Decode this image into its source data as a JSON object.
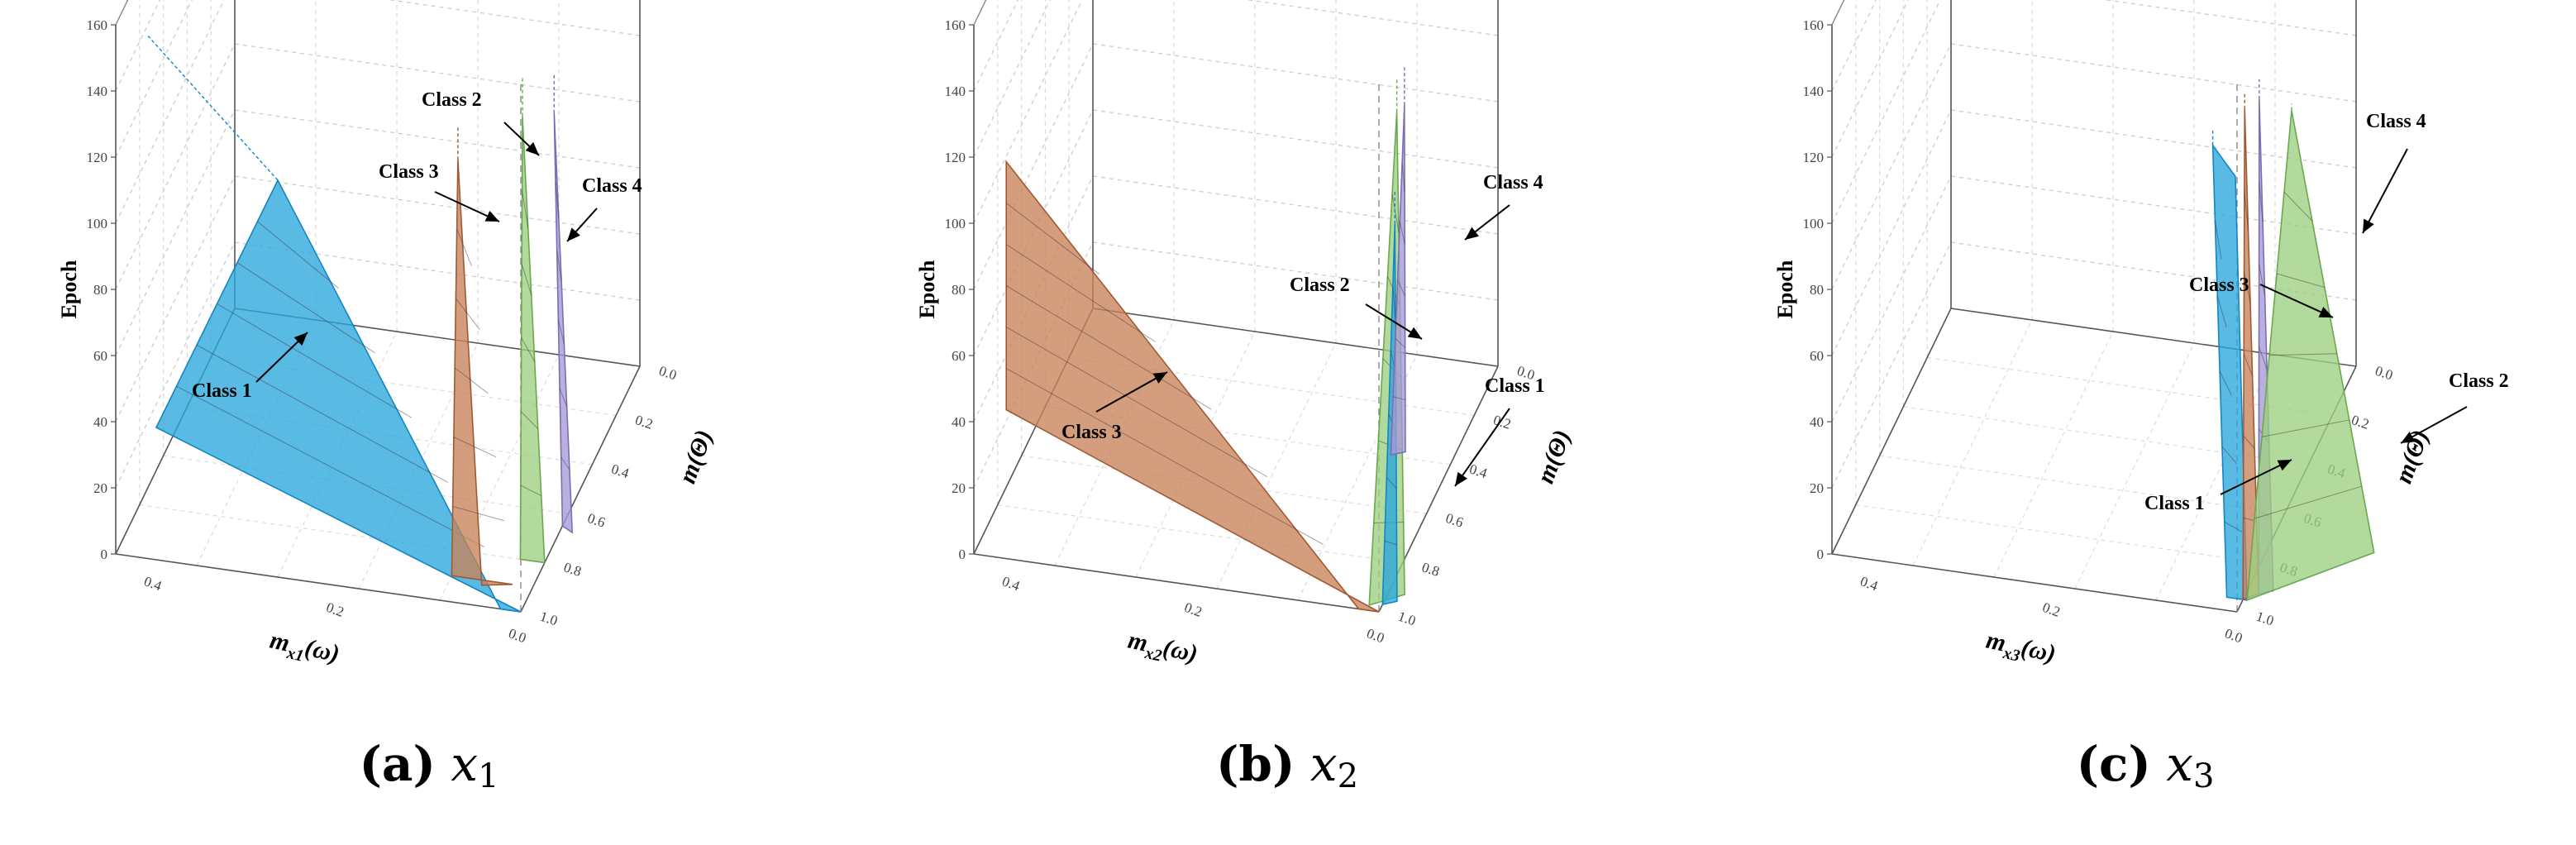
{
  "chart_data": [
    {
      "type": "surface3d",
      "caption": {
        "label": "(a)",
        "var": "x",
        "sub": "1"
      },
      "ylabel": "Epoch",
      "xlabel": "m",
      "xlabel_sub": "x1",
      "xlabel_arg": "(ω",
      "xlabel_arg2": ")",
      "zlabel": "m",
      "zlabel_arg": "(Θ)",
      "epoch_ticks": [
        "0",
        "20",
        "40",
        "60",
        "80",
        "100",
        "120",
        "140",
        "160"
      ],
      "epoch_range": [
        0,
        160
      ],
      "x_ticks": [
        "0.4",
        "0.2",
        "0.0"
      ],
      "z_ticks": [
        "0.0",
        "0.2",
        "0.4",
        "0.6",
        "0.8",
        "1.0"
      ],
      "series": [
        {
          "name": "Class 1",
          "color": "#2aa6dd",
          "edge": "#1486c4",
          "surface": [
            [
              0.9,
              0.0,
              40
            ],
            [
              0.6,
              0.0,
              120
            ],
            [
              0.05,
              0.0,
              0
            ],
            [
              0.0,
              0.0,
              0
            ]
          ],
          "tip": [
            0.92,
            0.0,
            158
          ]
        },
        {
          "name": "Class 3",
          "color": "#c8835a",
          "edge": "#a05a33",
          "surface": [
            [
              0.2,
              0.1,
              0
            ],
            [
              0.17,
              0.05,
              130
            ],
            [
              0.12,
              0.08,
              0
            ],
            [
              0.05,
              0.1,
              0
            ]
          ],
          "tip": [
            0.17,
            0.05,
            140
          ]
        },
        {
          "name": "Class 2",
          "color": "#9cd080",
          "edge": "#6aa84f",
          "surface": [
            [
              0.06,
              0.2,
              0
            ],
            [
              0.04,
              0.15,
              138
            ],
            [
              0.0,
              0.2,
              0
            ]
          ],
          "tip": [
            0.04,
            0.15,
            150
          ]
        },
        {
          "name": "Class 4",
          "color": "#a79ad6",
          "edge": "#7e6db5",
          "surface": [
            [
              0.0,
              0.35,
              0
            ],
            [
              0.0,
              0.28,
              130
            ],
            [
              -0.03,
              0.33,
              0
            ]
          ],
          "tip": [
            0.0,
            0.28,
            142
          ]
        }
      ]
    },
    {
      "type": "surface3d",
      "caption": {
        "label": "(b)",
        "var": "x",
        "sub": "2"
      },
      "ylabel": "Epoch",
      "xlabel": "m",
      "xlabel_sub": "x2",
      "xlabel_arg": "(ω",
      "xlabel_arg2": ")",
      "zlabel": "m",
      "zlabel_arg": "(Θ)",
      "epoch_ticks": [
        "0",
        "20",
        "40",
        "60",
        "80",
        "100",
        "120",
        "140",
        "160"
      ],
      "epoch_range": [
        0,
        160
      ],
      "x_ticks": [
        "0.4",
        "0.2",
        "0.0"
      ],
      "z_ticks": [
        "0.0",
        "0.2",
        "0.4",
        "0.6",
        "0.8",
        "1.0"
      ],
      "series": [
        {
          "name": "Class 3",
          "color": "#c8835a",
          "edge": "#a05a33",
          "surface": [
            [
              0.92,
              0.0,
              45
            ],
            [
              0.92,
              0.0,
              120
            ],
            [
              0.05,
              0.0,
              0
            ],
            [
              0.0,
              0.0,
              0
            ]
          ],
          "tip": [
            0.92,
            0.0,
            120
          ]
        },
        {
          "name": "Class 2",
          "color": "#9cd080",
          "edge": "#6aa84f",
          "surface": [
            [
              0.03,
              0.02,
              0
            ],
            [
              0.0,
              0.15,
              140
            ],
            [
              -0.04,
              0.08,
              0
            ]
          ],
          "tip": [
            0.0,
            0.15,
            150
          ]
        },
        {
          "name": "Class 1",
          "color": "#2aa6dd",
          "edge": "#1486c4",
          "surface": [
            [
              0.0,
              0.03,
              0
            ],
            [
              -0.01,
              0.1,
              110
            ],
            [
              -0.03,
              0.05,
              0
            ]
          ],
          "tip": [
            -0.01,
            0.1,
            120
          ]
        },
        {
          "name": "Class 4",
          "color": "#a79ad6",
          "edge": "#7e6db5",
          "surface": [
            [
              0.0,
              0.1,
              40
            ],
            [
              -0.01,
              0.18,
              140
            ],
            [
              -0.03,
              0.12,
              40
            ]
          ],
          "tip": [
            -0.01,
            0.18,
            152
          ]
        }
      ]
    },
    {
      "type": "surface3d",
      "caption": {
        "label": "(c)",
        "var": "x",
        "sub": "3"
      },
      "ylabel": "Epoch",
      "xlabel": "m",
      "xlabel_sub": "x3",
      "xlabel_arg": "(ω",
      "xlabel_arg2": ")",
      "zlabel": "m",
      "zlabel_arg": "(Θ)",
      "epoch_ticks": [
        "0",
        "20",
        "40",
        "60",
        "80",
        "100",
        "120",
        "140",
        "160"
      ],
      "epoch_range": [
        0,
        160
      ],
      "x_ticks": [
        "0.4",
        "0.2",
        "0.0"
      ],
      "z_ticks": [
        "0.0",
        "0.2",
        "0.4",
        "0.6",
        "0.8",
        "1.0"
      ],
      "series": [
        {
          "name": "Class 1",
          "color": "#2aa6dd",
          "edge": "#1486c4",
          "surface": [
            [
              0.04,
              0.05,
              0
            ],
            [
              0.06,
              0.0,
              140
            ],
            [
              0.01,
              0.02,
              130
            ],
            [
              -0.01,
              0.05,
              0
            ]
          ],
          "tip": [
            0.06,
            0.0,
            145
          ]
        },
        {
          "name": "Class 3",
          "color": "#c8835a",
          "edge": "#a05a33",
          "surface": [
            [
              0.0,
              0.05,
              0
            ],
            [
              -0.01,
              0.03,
              150
            ],
            [
              -0.03,
              0.08,
              0
            ]
          ],
          "tip": [
            -0.01,
            0.03,
            155
          ]
        },
        {
          "name": "Class 4",
          "color": "#a79ad6",
          "edge": "#7e6db5",
          "surface": [
            [
              -0.03,
              0.08,
              0
            ],
            [
              -0.04,
              0.05,
              152
            ],
            [
              -0.06,
              0.1,
              0
            ]
          ],
          "tip": [
            -0.04,
            0.05,
            158
          ]
        },
        {
          "name": "Class 2",
          "color": "#9cd080",
          "edge": "#6aa84f",
          "surface": [
            [
              -0.01,
              0.05,
              0
            ],
            [
              -0.12,
              0.05,
              150
            ],
            [
              -0.25,
              0.3,
              0
            ]
          ],
          "tip": [
            -0.12,
            0.05,
            152
          ]
        }
      ]
    }
  ]
}
